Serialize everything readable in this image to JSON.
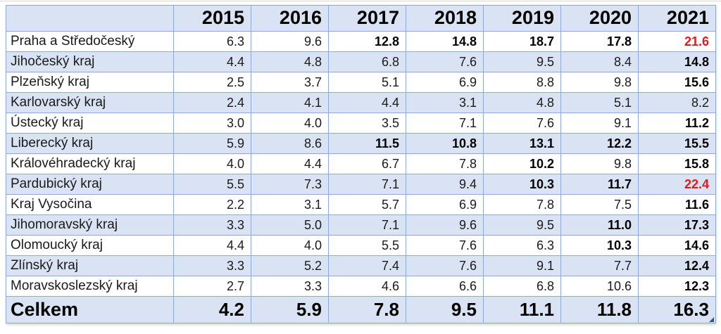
{
  "colors": {
    "band": "#dae3f3",
    "border": "#8eaadb",
    "highlight_red": "#e01a20",
    "handle_navy": "#2f5597"
  },
  "table": {
    "corner_label": "",
    "years": [
      "2015",
      "2016",
      "2017",
      "2018",
      "2019",
      "2020",
      "2021"
    ],
    "rows": [
      {
        "label": "Praha a Středočeský",
        "values": [
          "6.3",
          "9.6",
          "12.8",
          "14.8",
          "18.7",
          "17.8",
          "21.6"
        ],
        "bold": [
          0,
          0,
          1,
          1,
          1,
          1,
          1
        ],
        "red": [
          0,
          0,
          0,
          0,
          0,
          0,
          1
        ]
      },
      {
        "label": "Jihočeský kraj",
        "values": [
          "4.4",
          "4.8",
          "6.8",
          "7.6",
          "9.5",
          "8.4",
          "14.8"
        ],
        "bold": [
          0,
          0,
          0,
          0,
          0,
          0,
          1
        ],
        "red": [
          0,
          0,
          0,
          0,
          0,
          0,
          0
        ]
      },
      {
        "label": "Plzeňský kraj",
        "values": [
          "2.5",
          "3.7",
          "5.1",
          "6.9",
          "8.8",
          "9.8",
          "15.6"
        ],
        "bold": [
          0,
          0,
          0,
          0,
          0,
          0,
          1
        ],
        "red": [
          0,
          0,
          0,
          0,
          0,
          0,
          0
        ]
      },
      {
        "label": "Karlovarský kraj",
        "values": [
          "2.4",
          "4.1",
          "4.4",
          "3.1",
          "4.8",
          "5.1",
          "8.2"
        ],
        "bold": [
          0,
          0,
          0,
          0,
          0,
          0,
          0
        ],
        "red": [
          0,
          0,
          0,
          0,
          0,
          0,
          0
        ]
      },
      {
        "label": "Ústecký kraj",
        "values": [
          "3.0",
          "4.0",
          "3.5",
          "7.1",
          "7.6",
          "9.1",
          "11.2"
        ],
        "bold": [
          0,
          0,
          0,
          0,
          0,
          0,
          1
        ],
        "red": [
          0,
          0,
          0,
          0,
          0,
          0,
          0
        ]
      },
      {
        "label": "Liberecký kraj",
        "values": [
          "5.9",
          "8.6",
          "11.5",
          "10.8",
          "13.1",
          "12.2",
          "15.5"
        ],
        "bold": [
          0,
          0,
          1,
          1,
          1,
          1,
          1
        ],
        "red": [
          0,
          0,
          0,
          0,
          0,
          0,
          0
        ]
      },
      {
        "label": "Královéhradecký kraj",
        "values": [
          "4.0",
          "4.4",
          "6.7",
          "7.8",
          "10.2",
          "9.8",
          "15.8"
        ],
        "bold": [
          0,
          0,
          0,
          0,
          1,
          0,
          1
        ],
        "red": [
          0,
          0,
          0,
          0,
          0,
          0,
          0
        ]
      },
      {
        "label": "Pardubický kraj",
        "values": [
          "5.5",
          "7.3",
          "7.1",
          "9.4",
          "10.3",
          "11.7",
          "22.4"
        ],
        "bold": [
          0,
          0,
          0,
          0,
          1,
          1,
          1
        ],
        "red": [
          0,
          0,
          0,
          0,
          0,
          0,
          1
        ]
      },
      {
        "label": "Kraj Vysočina",
        "values": [
          "2.2",
          "3.1",
          "5.7",
          "6.9",
          "7.8",
          "7.5",
          "11.6"
        ],
        "bold": [
          0,
          0,
          0,
          0,
          0,
          0,
          1
        ],
        "red": [
          0,
          0,
          0,
          0,
          0,
          0,
          0
        ]
      },
      {
        "label": "Jihomoravský kraj",
        "values": [
          "3.3",
          "5.0",
          "7.1",
          "9.6",
          "9.5",
          "11.0",
          "17.3"
        ],
        "bold": [
          0,
          0,
          0,
          0,
          0,
          1,
          1
        ],
        "red": [
          0,
          0,
          0,
          0,
          0,
          0,
          0
        ]
      },
      {
        "label": "Olomoucký kraj",
        "values": [
          "4.4",
          "4.0",
          "5.5",
          "7.6",
          "6.3",
          "10.3",
          "14.6"
        ],
        "bold": [
          0,
          0,
          0,
          0,
          0,
          1,
          1
        ],
        "red": [
          0,
          0,
          0,
          0,
          0,
          0,
          0
        ]
      },
      {
        "label": "Zlínský kraj",
        "values": [
          "3.3",
          "5.2",
          "7.4",
          "7.6",
          "9.1",
          "7.7",
          "12.4"
        ],
        "bold": [
          0,
          0,
          0,
          0,
          0,
          0,
          1
        ],
        "red": [
          0,
          0,
          0,
          0,
          0,
          0,
          0
        ]
      },
      {
        "label": "Moravskoslezský kraj",
        "values": [
          "2.7",
          "3.3",
          "4.6",
          "6.6",
          "6.8",
          "10.6",
          "12.3"
        ],
        "bold": [
          0,
          0,
          0,
          0,
          0,
          0,
          1
        ],
        "red": [
          0,
          0,
          0,
          0,
          0,
          0,
          0
        ]
      }
    ],
    "total": {
      "label": "Celkem",
      "values": [
        "4.2",
        "5.9",
        "7.8",
        "9.5",
        "11.1",
        "11.8",
        "16.3"
      ]
    }
  },
  "chart_data": {
    "type": "table",
    "title": "",
    "categories": [
      "2015",
      "2016",
      "2017",
      "2018",
      "2019",
      "2020",
      "2021"
    ],
    "series": [
      {
        "name": "Praha a Středočeský",
        "values": [
          6.3,
          9.6,
          12.8,
          14.8,
          18.7,
          17.8,
          21.6
        ]
      },
      {
        "name": "Jihočeský kraj",
        "values": [
          4.4,
          4.8,
          6.8,
          7.6,
          9.5,
          8.4,
          14.8
        ]
      },
      {
        "name": "Plzeňský kraj",
        "values": [
          2.5,
          3.7,
          5.1,
          6.9,
          8.8,
          9.8,
          15.6
        ]
      },
      {
        "name": "Karlovarský kraj",
        "values": [
          2.4,
          4.1,
          4.4,
          3.1,
          4.8,
          5.1,
          8.2
        ]
      },
      {
        "name": "Ústecký kraj",
        "values": [
          3.0,
          4.0,
          3.5,
          7.1,
          7.6,
          9.1,
          11.2
        ]
      },
      {
        "name": "Liberecký kraj",
        "values": [
          5.9,
          8.6,
          11.5,
          10.8,
          13.1,
          12.2,
          15.5
        ]
      },
      {
        "name": "Královéhradecký kraj",
        "values": [
          4.0,
          4.4,
          6.7,
          7.8,
          10.2,
          9.8,
          15.8
        ]
      },
      {
        "name": "Pardubický kraj",
        "values": [
          5.5,
          7.3,
          7.1,
          9.4,
          10.3,
          11.7,
          22.4
        ]
      },
      {
        "name": "Kraj Vysočina",
        "values": [
          2.2,
          3.1,
          5.7,
          6.9,
          7.8,
          7.5,
          11.6
        ]
      },
      {
        "name": "Jihomoravský kraj",
        "values": [
          3.3,
          5.0,
          7.1,
          9.6,
          9.5,
          11.0,
          17.3
        ]
      },
      {
        "name": "Olomoucký kraj",
        "values": [
          4.4,
          4.0,
          5.5,
          7.6,
          6.3,
          10.3,
          14.6
        ]
      },
      {
        "name": "Zlínský kraj",
        "values": [
          3.3,
          5.2,
          7.4,
          7.6,
          9.1,
          7.7,
          12.4
        ]
      },
      {
        "name": "Moravskoslezský kraj",
        "values": [
          2.7,
          3.3,
          4.6,
          6.6,
          6.8,
          10.6,
          12.3
        ]
      },
      {
        "name": "Celkem",
        "values": [
          4.2,
          5.9,
          7.8,
          9.5,
          11.1,
          11.8,
          16.3
        ]
      }
    ]
  }
}
